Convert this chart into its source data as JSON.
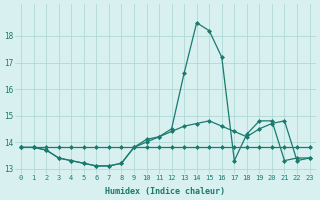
{
  "xlabel": "Humidex (Indice chaleur)",
  "background_color": "#d8f0f0",
  "grid_color": "#aad4d4",
  "line_color": "#1a7a6e",
  "xlim_min": -0.5,
  "xlim_max": 23.5,
  "ylim_min": 12.8,
  "ylim_max": 19.2,
  "yticks": [
    13,
    14,
    15,
    16,
    17,
    18
  ],
  "xticks": [
    0,
    1,
    2,
    3,
    4,
    5,
    6,
    7,
    8,
    9,
    10,
    11,
    12,
    13,
    14,
    15,
    16,
    17,
    18,
    19,
    20,
    21,
    22,
    23
  ],
  "series": [
    [
      13.8,
      13.8,
      13.7,
      13.4,
      13.3,
      13.2,
      13.1,
      13.1,
      13.2,
      13.8,
      14.0,
      14.2,
      14.4,
      14.6,
      14.7,
      14.8,
      14.6,
      14.4,
      14.2,
      14.5,
      14.7,
      14.8,
      13.3,
      13.4
    ],
    [
      13.8,
      13.8,
      13.7,
      13.4,
      13.3,
      13.2,
      13.1,
      13.1,
      13.2,
      13.8,
      14.1,
      14.2,
      14.5,
      16.6,
      18.5,
      18.2,
      17.2,
      13.3,
      14.3,
      14.8,
      14.8,
      13.3,
      13.4,
      13.4
    ],
    [
      13.8,
      13.8,
      13.8,
      13.8,
      13.8,
      13.8,
      13.8,
      13.8,
      13.8,
      13.8,
      13.8,
      13.8,
      13.8,
      13.8,
      13.8,
      13.8,
      13.8,
      13.8,
      13.8,
      13.8,
      13.8,
      13.8,
      13.8,
      13.8
    ]
  ]
}
